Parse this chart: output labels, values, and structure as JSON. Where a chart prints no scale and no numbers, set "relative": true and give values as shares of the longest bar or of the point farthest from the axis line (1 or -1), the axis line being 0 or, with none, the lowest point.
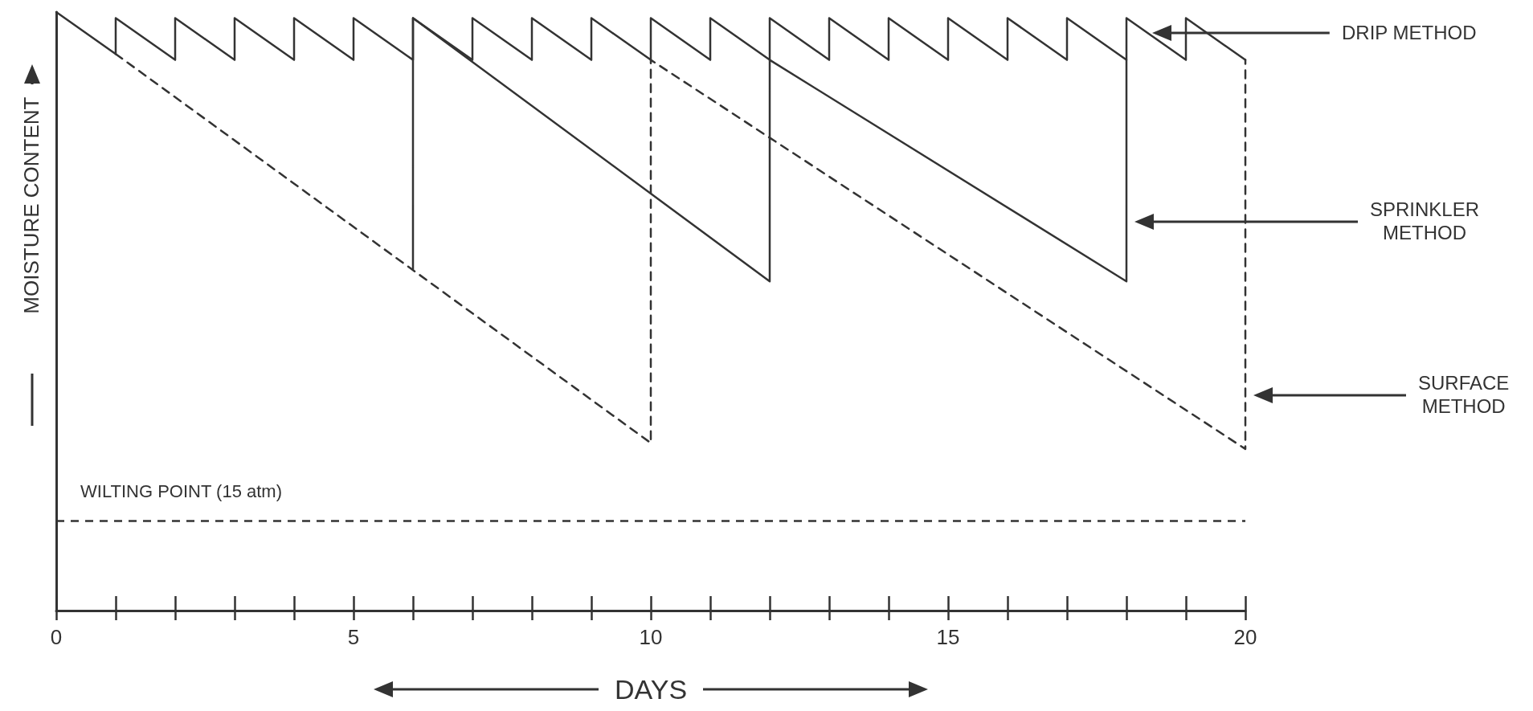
{
  "chart_data": {
    "type": "line",
    "relative": true,
    "xlabel": "DAYS",
    "ylabel": "MOISTURE CONTENT",
    "xlim": [
      0,
      20
    ],
    "xticks": [
      0,
      {
        "value": 1,
        "label": null
      },
      {
        "value": 2,
        "label": null
      },
      {
        "value": 3,
        "label": null
      },
      {
        "value": 4,
        "label": null
      },
      5,
      {
        "value": 6,
        "label": null
      },
      {
        "value": 7,
        "label": null
      },
      {
        "value": 8,
        "label": null
      },
      {
        "value": 9,
        "label": null
      },
      10,
      {
        "value": 11,
        "label": null
      },
      {
        "value": 12,
        "label": null
      },
      {
        "value": 13,
        "label": null
      },
      {
        "value": 14,
        "label": null
      },
      15,
      {
        "value": 16,
        "label": null
      },
      {
        "value": 17,
        "label": null
      },
      {
        "value": 18,
        "label": null
      },
      {
        "value": 19,
        "label": null
      },
      20
    ],
    "grid": false,
    "legend": false,
    "marker": "none",
    "series": [
      {
        "name": "DRIP METHOD",
        "color": "#333333",
        "line_style": "solid",
        "x": [
          0,
          1,
          1,
          2,
          2,
          3,
          3,
          4,
          4,
          5,
          5,
          6,
          6,
          7,
          7,
          8,
          8,
          9,
          9,
          10,
          10,
          11,
          11,
          12,
          12,
          13,
          13,
          14,
          14,
          15,
          15,
          16,
          16,
          17,
          17,
          18,
          18,
          19,
          19,
          20
        ],
        "values": [
          1.0,
          0.93,
          0.99,
          0.92,
          0.99,
          0.92,
          0.99,
          0.92,
          0.99,
          0.92,
          0.99,
          0.92,
          0.99,
          0.92,
          0.99,
          0.92,
          0.99,
          0.92,
          0.99,
          0.92,
          0.99,
          0.92,
          0.99,
          0.92,
          0.99,
          0.92,
          0.99,
          0.92,
          0.99,
          0.92,
          0.99,
          0.92,
          0.99,
          0.92,
          0.99,
          0.92,
          0.99,
          0.92,
          0.99,
          0.92
        ]
      },
      {
        "name": "SPRINKLER\nMETHOD",
        "color": "#333333",
        "line_style": "solid",
        "x": [
          6,
          6,
          12,
          12,
          18,
          18
        ],
        "values": [
          0.57,
          0.99,
          0.55,
          0.92,
          0.55,
          0.92
        ]
      },
      {
        "name": "SURFACE\nMETHOD",
        "color": "#333333",
        "line_style": "dashed",
        "x": [
          1,
          10,
          10,
          20,
          20
        ],
        "values": [
          0.93,
          0.28,
          0.92,
          0.27,
          0.92
        ]
      }
    ],
    "ref_lines": [
      {
        "axis": "y",
        "value": 0.15,
        "label": "WILTING POINT (15 atm)",
        "color": "#333333",
        "line_style": "dashed"
      }
    ]
  }
}
